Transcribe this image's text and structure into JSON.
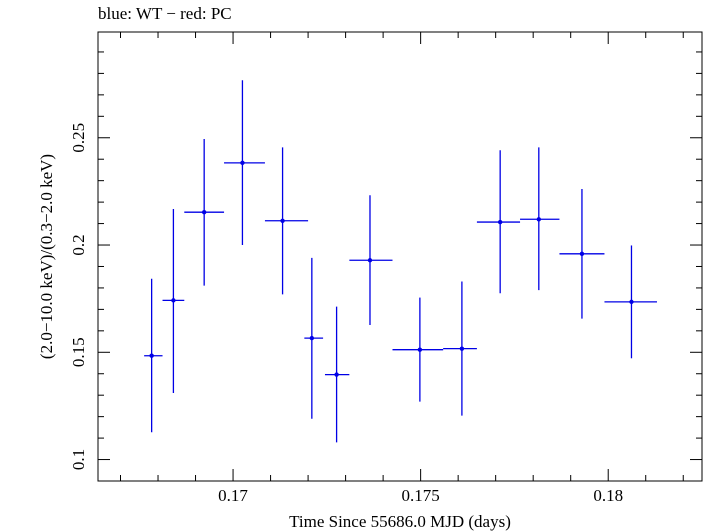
{
  "chart_data": {
    "type": "scatter",
    "title": "blue: WT − red: PC",
    "xlabel": "Time Since 55686.0 MJD (days)",
    "ylabel": "(2.0−10.0 keV)/(0.3−2.0 keV)",
    "xlim": [
      0.1664,
      0.1825
    ],
    "ylim": [
      0.09,
      0.2993
    ],
    "x_ticks": [
      {
        "value": 0.17,
        "label": "0.17"
      },
      {
        "value": 0.175,
        "label": "0.175"
      },
      {
        "value": 0.18,
        "label": "0.18"
      }
    ],
    "y_ticks": [
      {
        "value": 0.1,
        "label": "0.1"
      },
      {
        "value": 0.15,
        "label": "0.15"
      },
      {
        "value": 0.2,
        "label": "0.2"
      },
      {
        "value": 0.25,
        "label": "0.25"
      }
    ],
    "grid": false,
    "color": "#0000e6",
    "series": [
      {
        "points": [
          {
            "x": 0.16783,
            "y": 0.1484,
            "xlo": 0.16763,
            "xhi": 0.16812,
            "ylo": 0.1127,
            "yhi": 0.1843
          },
          {
            "x": 0.16841,
            "y": 0.1742,
            "xlo": 0.16812,
            "xhi": 0.1687,
            "ylo": 0.131,
            "yhi": 0.2168
          },
          {
            "x": 0.16923,
            "y": 0.2153,
            "xlo": 0.1687,
            "xhi": 0.16976,
            "ylo": 0.1811,
            "yhi": 0.2494
          },
          {
            "x": 0.17025,
            "y": 0.2383,
            "xlo": 0.16976,
            "xhi": 0.17085,
            "ylo": 0.2,
            "yhi": 0.2768
          },
          {
            "x": 0.17132,
            "y": 0.2113,
            "xlo": 0.17085,
            "xhi": 0.172,
            "ylo": 0.177,
            "yhi": 0.2455
          },
          {
            "x": 0.1721,
            "y": 0.1566,
            "xlo": 0.1719,
            "xhi": 0.1724,
            "ylo": 0.119,
            "yhi": 0.194
          },
          {
            "x": 0.17276,
            "y": 0.1396,
            "xlo": 0.17245,
            "xhi": 0.1731,
            "ylo": 0.108,
            "yhi": 0.1713
          },
          {
            "x": 0.17365,
            "y": 0.1929,
            "xlo": 0.1731,
            "xhi": 0.17425,
            "ylo": 0.1627,
            "yhi": 0.2232
          },
          {
            "x": 0.17498,
            "y": 0.1512,
            "xlo": 0.17425,
            "xhi": 0.1756,
            "ylo": 0.127,
            "yhi": 0.1755
          },
          {
            "x": 0.1761,
            "y": 0.1517,
            "xlo": 0.1756,
            "xhi": 0.1765,
            "ylo": 0.1205,
            "yhi": 0.183
          },
          {
            "x": 0.17712,
            "y": 0.2107,
            "xlo": 0.1765,
            "xhi": 0.17765,
            "ylo": 0.1775,
            "yhi": 0.2442
          },
          {
            "x": 0.17815,
            "y": 0.212,
            "xlo": 0.17765,
            "xhi": 0.1787,
            "ylo": 0.179,
            "yhi": 0.2455
          },
          {
            "x": 0.1793,
            "y": 0.1959,
            "xlo": 0.1787,
            "xhi": 0.1799,
            "ylo": 0.1657,
            "yhi": 0.2261
          },
          {
            "x": 0.18062,
            "y": 0.1735,
            "xlo": 0.1799,
            "xhi": 0.1813,
            "ylo": 0.1472,
            "yhi": 0.1998
          }
        ]
      }
    ]
  }
}
